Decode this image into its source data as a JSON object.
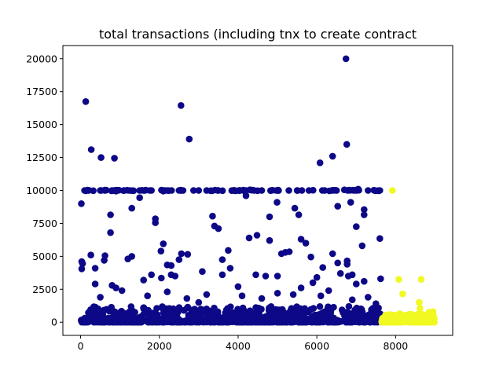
{
  "chart_data": {
    "type": "scatter",
    "title": "total transactions (including tnx to create contract",
    "xlabel": "",
    "ylabel": "",
    "xlim": [
      -450,
      9450
    ],
    "ylim": [
      -1000,
      21000
    ],
    "x_ticks": [
      0,
      2000,
      4000,
      6000,
      8000
    ],
    "x_tick_labels": [
      "0",
      "2000",
      "4000",
      "6000",
      "8000"
    ],
    "y_ticks": [
      0,
      2500,
      5000,
      7500,
      10000,
      12500,
      15000,
      17500,
      20000
    ],
    "y_tick_labels": [
      "0",
      "2500",
      "5000",
      "7500",
      "10000",
      "12500",
      "15000",
      "17500",
      "20000"
    ],
    "grid": false,
    "legend": "none",
    "colors": {
      "class_0": "#0d0887",
      "class_1": "#f0f921",
      "axes": "#000000",
      "background": "#ffffff"
    },
    "series": [
      {
        "color": "#0d0887",
        "points": [
          [
            30,
            4600
          ],
          [
            50,
            4450
          ],
          [
            30,
            4050
          ],
          [
            20,
            9000
          ],
          [
            130,
            16750
          ],
          [
            270,
            13100
          ],
          [
            520,
            12500
          ],
          [
            860,
            12450
          ],
          [
            2550,
            16450
          ],
          [
            2760,
            13900
          ],
          [
            6080,
            12100
          ],
          [
            6400,
            12600
          ],
          [
            6740,
            20000
          ],
          [
            6760,
            13500
          ],
          [
            6860,
            9100
          ],
          [
            7000,
            7250
          ],
          [
            7200,
            8550
          ],
          [
            7200,
            8150
          ],
          [
            7150,
            5800
          ],
          [
            7600,
            6350
          ],
          [
            7620,
            3300
          ],
          [
            260,
            5100
          ],
          [
            370,
            4100
          ],
          [
            370,
            2900
          ],
          [
            600,
            4700
          ],
          [
            620,
            5050
          ],
          [
            760,
            6800
          ],
          [
            760,
            8150
          ],
          [
            1200,
            4800
          ],
          [
            1300,
            5000
          ],
          [
            1300,
            8650
          ],
          [
            1500,
            9450
          ],
          [
            1900,
            7850
          ],
          [
            1900,
            7550
          ],
          [
            2040,
            5400
          ],
          [
            2100,
            5950
          ],
          [
            2200,
            4350
          ],
          [
            2300,
            4300
          ],
          [
            2300,
            3600
          ],
          [
            2500,
            4750
          ],
          [
            2560,
            5200
          ],
          [
            2720,
            5150
          ],
          [
            3090,
            3850
          ],
          [
            3350,
            8050
          ],
          [
            3400,
            7300
          ],
          [
            3500,
            7100
          ],
          [
            3600,
            4750
          ],
          [
            3750,
            5450
          ],
          [
            3600,
            3600
          ],
          [
            3800,
            4100
          ],
          [
            4000,
            2700
          ],
          [
            4200,
            9600
          ],
          [
            4280,
            6400
          ],
          [
            4480,
            6600
          ],
          [
            4700,
            3500
          ],
          [
            4800,
            8000
          ],
          [
            4800,
            6200
          ],
          [
            4990,
            9100
          ],
          [
            5000,
            3500
          ],
          [
            5100,
            5200
          ],
          [
            5200,
            5300
          ],
          [
            5300,
            5350
          ],
          [
            5440,
            8650
          ],
          [
            5540,
            8150
          ],
          [
            5600,
            6300
          ],
          [
            5720,
            6000
          ],
          [
            5850,
            4950
          ],
          [
            6000,
            3400
          ],
          [
            6150,
            4150
          ],
          [
            6400,
            5200
          ],
          [
            6530,
            8800
          ],
          [
            6530,
            4500
          ],
          [
            6600,
            3700
          ],
          [
            6770,
            4650
          ],
          [
            6770,
            4400
          ],
          [
            6800,
            3500
          ],
          [
            6900,
            3600
          ],
          [
            7000,
            2900
          ],
          [
            7200,
            3100
          ],
          [
            1050,
            2400
          ],
          [
            1600,
            3200
          ],
          [
            1800,
            3600
          ],
          [
            2050,
            3350
          ],
          [
            2400,
            3500
          ],
          [
            4450,
            3600
          ],
          [
            5900,
            3000
          ],
          [
            6300,
            2400
          ],
          [
            3000,
            1500
          ],
          [
            5600,
            2600
          ],
          [
            5400,
            2100
          ],
          [
            500,
            1900
          ],
          [
            800,
            2800
          ],
          [
            900,
            2600
          ],
          [
            1700,
            2000
          ],
          [
            2200,
            2300
          ],
          [
            2700,
            1800
          ],
          [
            3200,
            2100
          ],
          [
            4100,
            2000
          ],
          [
            4600,
            1800
          ],
          [
            5000,
            2200
          ],
          [
            6100,
            2000
          ],
          [
            6900,
            1700
          ],
          [
            7300,
            1900
          ],
          [
            7500,
            1400
          ],
          [
            100,
            10000
          ],
          [
            500,
            10000
          ],
          [
            1100,
            10000
          ],
          [
            2200,
            10000
          ],
          [
            3000,
            10000
          ],
          [
            3900,
            10000
          ],
          [
            4300,
            10050
          ],
          [
            5000,
            10000
          ],
          [
            6200,
            10000
          ],
          [
            6700,
            10050
          ],
          [
            7050,
            10100
          ],
          [
            7600,
            10000
          ],
          [
            800,
            10000
          ],
          [
            1500,
            10000
          ],
          [
            1800,
            10000
          ],
          [
            2500,
            10000
          ],
          [
            3500,
            10000
          ],
          [
            4600,
            10000
          ],
          [
            5500,
            10000
          ],
          [
            5800,
            10000
          ],
          [
            6500,
            10000
          ],
          [
            7300,
            10000
          ],
          [
            7000,
            10000
          ],
          [
            4200,
            10000
          ],
          [
            3200,
            10000
          ],
          [
            2100,
            9950
          ],
          [
            900,
            9950
          ]
        ],
        "band_range_x": [
          0,
          7650
        ],
        "band_range_y": [
          0,
          1200
        ],
        "line_10000_range_x": [
          0,
          7650
        ]
      },
      {
        "color": "#f0f921",
        "points": [
          [
            7920,
            10000
          ],
          [
            8080,
            3250
          ],
          [
            8650,
            3250
          ],
          [
            8180,
            2150
          ],
          [
            8600,
            1500
          ],
          [
            8620,
            1050
          ],
          [
            8850,
            750
          ],
          [
            8950,
            800
          ],
          [
            8400,
            600
          ],
          [
            8100,
            650
          ],
          [
            8300,
            500
          ],
          [
            8500,
            450
          ],
          [
            8800,
            400
          ]
        ],
        "band_range_x": [
          7650,
          9000
        ],
        "band_range_y": [
          0,
          600
        ]
      }
    ]
  }
}
